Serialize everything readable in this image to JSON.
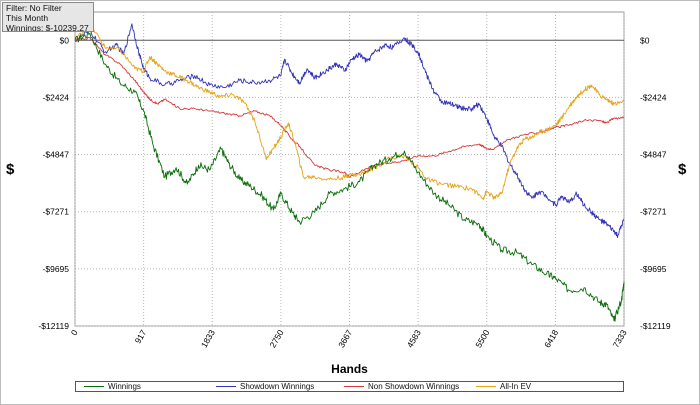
{
  "info": {
    "filter": "Filter: No Filter",
    "period": "This Month",
    "winnings": "Winnings: $-10239.27"
  },
  "chart_data": {
    "type": "line",
    "xlabel": "Hands",
    "ylabel": "$",
    "xlim": [
      0,
      7333
    ],
    "ylim": [
      -12119,
      1200
    ],
    "x_ticks": [
      0,
      917,
      1833,
      2750,
      3667,
      4583,
      5500,
      6418,
      7333
    ],
    "y_ticks": [
      {
        "value": 0,
        "label": "$0"
      },
      {
        "value": -2424,
        "label": "-$2424"
      },
      {
        "value": -4847,
        "label": "-$4847"
      },
      {
        "value": -7271,
        "label": "-$7271"
      },
      {
        "value": -9695,
        "label": "-$9695"
      },
      {
        "value": -12119,
        "label": "-$12119"
      }
    ],
    "grid": "dotted",
    "legend": "bottom",
    "series": [
      {
        "name": "Winnings",
        "color": "#0a6e0a",
        "points": [
          [
            0,
            0
          ],
          [
            200,
            300
          ],
          [
            400,
            -1000
          ],
          [
            600,
            -1800
          ],
          [
            800,
            -2200
          ],
          [
            917,
            -3000
          ],
          [
            1050,
            -4500
          ],
          [
            1200,
            -5800
          ],
          [
            1350,
            -5400
          ],
          [
            1500,
            -6100
          ],
          [
            1650,
            -5300
          ],
          [
            1800,
            -5500
          ],
          [
            1950,
            -4600
          ],
          [
            2050,
            -5200
          ],
          [
            2200,
            -5900
          ],
          [
            2350,
            -6200
          ],
          [
            2500,
            -6600
          ],
          [
            2650,
            -7200
          ],
          [
            2750,
            -6500
          ],
          [
            2900,
            -7300
          ],
          [
            3000,
            -7700
          ],
          [
            3200,
            -7300
          ],
          [
            3400,
            -6500
          ],
          [
            3600,
            -6300
          ],
          [
            3800,
            -6000
          ],
          [
            4000,
            -5300
          ],
          [
            4200,
            -5000
          ],
          [
            4400,
            -4700
          ],
          [
            4583,
            -5600
          ],
          [
            4800,
            -6500
          ],
          [
            5000,
            -7000
          ],
          [
            5200,
            -7600
          ],
          [
            5400,
            -7800
          ],
          [
            5500,
            -8300
          ],
          [
            5700,
            -8900
          ],
          [
            5900,
            -9000
          ],
          [
            6100,
            -9500
          ],
          [
            6300,
            -9900
          ],
          [
            6418,
            -10100
          ],
          [
            6600,
            -10600
          ],
          [
            6800,
            -10500
          ],
          [
            7000,
            -11100
          ],
          [
            7100,
            -11200
          ],
          [
            7200,
            -11900
          ],
          [
            7300,
            -11000
          ],
          [
            7333,
            -10239.27
          ]
        ]
      },
      {
        "name": "Showdown Winnings",
        "color": "#3434b8",
        "points": [
          [
            0,
            0
          ],
          [
            200,
            400
          ],
          [
            400,
            -500
          ],
          [
            550,
            -200
          ],
          [
            650,
            -600
          ],
          [
            760,
            700
          ],
          [
            850,
            -500
          ],
          [
            917,
            -1200
          ],
          [
            1000,
            -1600
          ],
          [
            1200,
            -1900
          ],
          [
            1400,
            -1700
          ],
          [
            1600,
            -1500
          ],
          [
            1800,
            -1900
          ],
          [
            2000,
            -2000
          ],
          [
            2200,
            -1700
          ],
          [
            2400,
            -1800
          ],
          [
            2600,
            -1700
          ],
          [
            2750,
            -1500
          ],
          [
            2800,
            -800
          ],
          [
            2900,
            -1400
          ],
          [
            3000,
            -1800
          ],
          [
            3100,
            -1200
          ],
          [
            3200,
            -1600
          ],
          [
            3300,
            -1400
          ],
          [
            3400,
            -1200
          ],
          [
            3500,
            -1000
          ],
          [
            3600,
            -1300
          ],
          [
            3700,
            -800
          ],
          [
            3800,
            -600
          ],
          [
            3900,
            -900
          ],
          [
            4000,
            -500
          ],
          [
            4150,
            -200
          ],
          [
            4250,
            -300
          ],
          [
            4400,
            100
          ],
          [
            4500,
            -200
          ],
          [
            4583,
            -500
          ],
          [
            4700,
            -1500
          ],
          [
            4800,
            -2200
          ],
          [
            4900,
            -2600
          ],
          [
            5000,
            -2700
          ],
          [
            5100,
            -2800
          ],
          [
            5200,
            -2900
          ],
          [
            5300,
            -2900
          ],
          [
            5400,
            -2700
          ],
          [
            5500,
            -3300
          ],
          [
            5600,
            -4100
          ],
          [
            5700,
            -4500
          ],
          [
            5800,
            -5200
          ],
          [
            5900,
            -5700
          ],
          [
            6000,
            -6300
          ],
          [
            6100,
            -6700
          ],
          [
            6200,
            -6400
          ],
          [
            6300,
            -6600
          ],
          [
            6418,
            -7000
          ],
          [
            6500,
            -6600
          ],
          [
            6600,
            -6900
          ],
          [
            6700,
            -6500
          ],
          [
            6800,
            -7000
          ],
          [
            6900,
            -7300
          ],
          [
            7000,
            -7600
          ],
          [
            7100,
            -7800
          ],
          [
            7200,
            -8100
          ],
          [
            7250,
            -8300
          ],
          [
            7333,
            -7600
          ]
        ]
      },
      {
        "name": "Non Showdown Winnings",
        "color": "#d63a3a",
        "points": [
          [
            0,
            0
          ],
          [
            200,
            100
          ],
          [
            400,
            -600
          ],
          [
            600,
            -1000
          ],
          [
            800,
            -1700
          ],
          [
            917,
            -2200
          ],
          [
            1000,
            -2500
          ],
          [
            1100,
            -2700
          ],
          [
            1200,
            -2500
          ],
          [
            1400,
            -2900
          ],
          [
            1600,
            -2900
          ],
          [
            1800,
            -3000
          ],
          [
            2000,
            -3100
          ],
          [
            2200,
            -3200
          ],
          [
            2400,
            -3000
          ],
          [
            2600,
            -3200
          ],
          [
            2750,
            -3600
          ],
          [
            2900,
            -4200
          ],
          [
            3000,
            -4500
          ],
          [
            3200,
            -5300
          ],
          [
            3400,
            -5500
          ],
          [
            3600,
            -5600
          ],
          [
            3667,
            -5800
          ],
          [
            3800,
            -5600
          ],
          [
            4000,
            -5300
          ],
          [
            4200,
            -5200
          ],
          [
            4400,
            -5100
          ],
          [
            4583,
            -4900
          ],
          [
            4800,
            -4900
          ],
          [
            5000,
            -4700
          ],
          [
            5200,
            -4500
          ],
          [
            5400,
            -4400
          ],
          [
            5500,
            -4600
          ],
          [
            5600,
            -4600
          ],
          [
            5800,
            -4200
          ],
          [
            6000,
            -4000
          ],
          [
            6200,
            -3900
          ],
          [
            6418,
            -3700
          ],
          [
            6600,
            -3600
          ],
          [
            6800,
            -3400
          ],
          [
            7000,
            -3400
          ],
          [
            7100,
            -3500
          ],
          [
            7200,
            -3300
          ],
          [
            7333,
            -3300
          ]
        ]
      },
      {
        "name": "All-In EV",
        "color": "#e8a317",
        "points": [
          [
            0,
            0
          ],
          [
            200,
            700
          ],
          [
            400,
            -300
          ],
          [
            600,
            -400
          ],
          [
            800,
            -1200
          ],
          [
            917,
            -1300
          ],
          [
            1000,
            -700
          ],
          [
            1100,
            -1000
          ],
          [
            1200,
            -1300
          ],
          [
            1350,
            -1500
          ],
          [
            1500,
            -1700
          ],
          [
            1650,
            -2000
          ],
          [
            1800,
            -2200
          ],
          [
            1950,
            -2400
          ],
          [
            2100,
            -2300
          ],
          [
            2250,
            -2600
          ],
          [
            2400,
            -3400
          ],
          [
            2550,
            -5000
          ],
          [
            2650,
            -4600
          ],
          [
            2750,
            -4100
          ],
          [
            2850,
            -3500
          ],
          [
            2950,
            -4500
          ],
          [
            3050,
            -5800
          ],
          [
            3200,
            -5800
          ],
          [
            3400,
            -5900
          ],
          [
            3600,
            -5800
          ],
          [
            3667,
            -5700
          ],
          [
            3800,
            -5700
          ],
          [
            4000,
            -5400
          ],
          [
            4200,
            -5000
          ],
          [
            4400,
            -4900
          ],
          [
            4583,
            -5400
          ],
          [
            4700,
            -5900
          ],
          [
            4900,
            -6100
          ],
          [
            5100,
            -6200
          ],
          [
            5300,
            -6300
          ],
          [
            5450,
            -6700
          ],
          [
            5500,
            -6400
          ],
          [
            5600,
            -6700
          ],
          [
            5700,
            -6500
          ],
          [
            5800,
            -5300
          ],
          [
            5900,
            -4600
          ],
          [
            6000,
            -4200
          ],
          [
            6100,
            -4100
          ],
          [
            6200,
            -3900
          ],
          [
            6300,
            -3800
          ],
          [
            6418,
            -3600
          ],
          [
            6500,
            -3300
          ],
          [
            6600,
            -2800
          ],
          [
            6700,
            -2400
          ],
          [
            6800,
            -2100
          ],
          [
            6900,
            -1900
          ],
          [
            7000,
            -2300
          ],
          [
            7100,
            -2500
          ],
          [
            7200,
            -2700
          ],
          [
            7333,
            -2600
          ]
        ]
      }
    ]
  }
}
